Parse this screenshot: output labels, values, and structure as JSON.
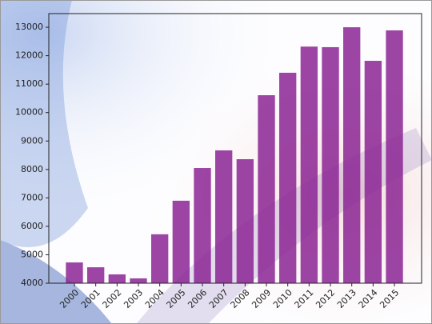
{
  "chart_data": {
    "type": "bar",
    "categories": [
      "2000",
      "2001",
      "2002",
      "2003",
      "2004",
      "2005",
      "2006",
      "2007",
      "2008",
      "2009",
      "2010",
      "2011",
      "2012",
      "2013",
      "2014",
      "2015"
    ],
    "values": [
      4730,
      4560,
      4310,
      4170,
      5720,
      6900,
      8050,
      8670,
      8360,
      10610,
      11400,
      12320,
      12300,
      13000,
      11820,
      12890
    ],
    "color": "#8b2594",
    "ylim": [
      4000,
      13480
    ],
    "yticks": [
      4000,
      5000,
      6000,
      7000,
      8000,
      9000,
      10000,
      11000,
      12000,
      13000
    ]
  }
}
